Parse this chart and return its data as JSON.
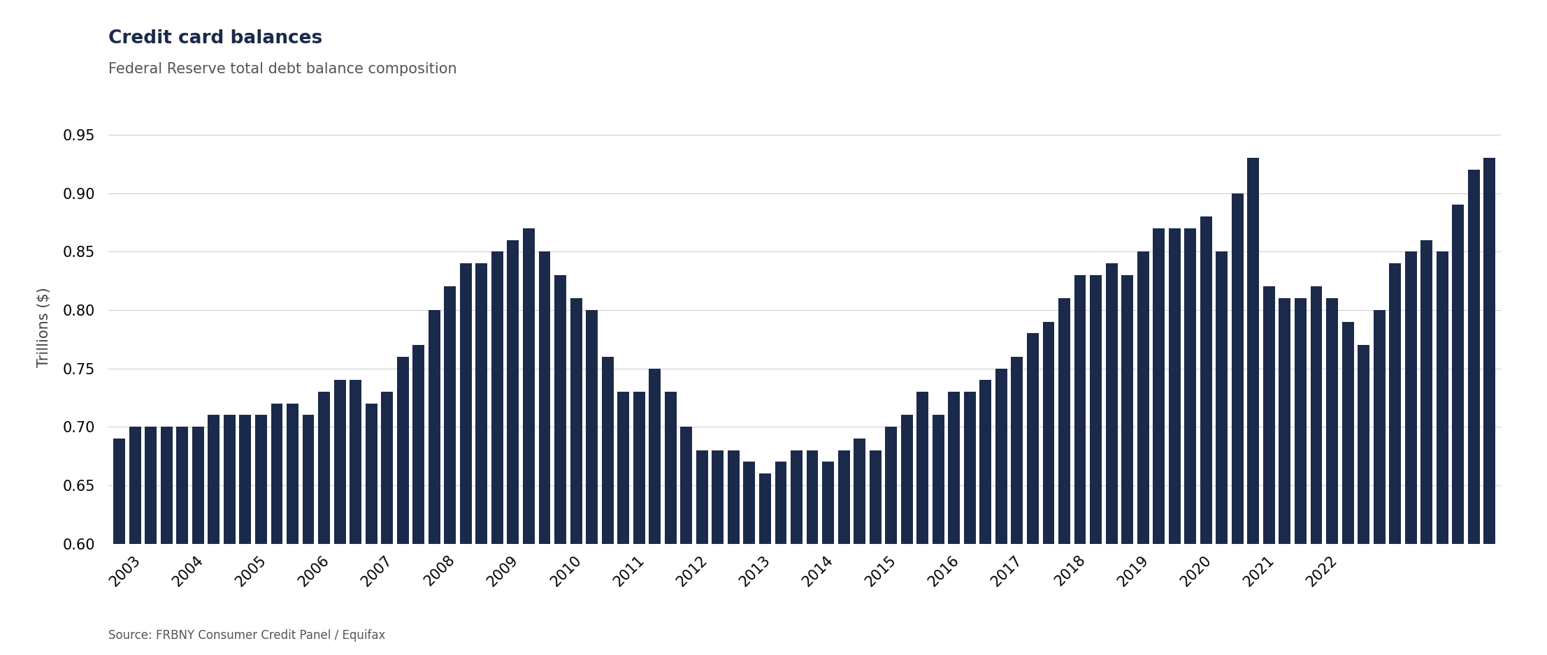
{
  "title": "Credit card balances",
  "subtitle": "Federal Reserve total debt balance composition",
  "ylabel": "Trillions ($)",
  "source": "Source: FRBNY Consumer Credit Panel / Equifax",
  "bar_color": "#1b2a4a",
  "background_color": "#ffffff",
  "ylim": [
    0.6,
    0.97
  ],
  "yticks": [
    0.6,
    0.65,
    0.7,
    0.75,
    0.8,
    0.85,
    0.9,
    0.95
  ],
  "values": [
    0.69,
    0.7,
    0.7,
    0.7,
    0.7,
    0.7,
    0.71,
    0.71,
    0.71,
    0.71,
    0.72,
    0.72,
    0.71,
    0.73,
    0.74,
    0.74,
    0.72,
    0.73,
    0.76,
    0.77,
    0.8,
    0.82,
    0.84,
    0.84,
    0.85,
    0.86,
    0.87,
    0.85,
    0.83,
    0.81,
    0.8,
    0.76,
    0.73,
    0.73,
    0.75,
    0.73,
    0.7,
    0.68,
    0.68,
    0.68,
    0.67,
    0.66,
    0.67,
    0.68,
    0.68,
    0.67,
    0.68,
    0.69,
    0.68,
    0.7,
    0.71,
    0.73,
    0.71,
    0.73,
    0.73,
    0.74,
    0.75,
    0.76,
    0.78,
    0.79,
    0.81,
    0.83,
    0.83,
    0.84,
    0.83,
    0.85,
    0.87,
    0.87,
    0.87,
    0.88,
    0.85,
    0.9,
    0.93,
    0.82,
    0.81,
    0.81,
    0.82,
    0.81,
    0.79,
    0.77,
    0.8,
    0.84,
    0.85,
    0.86,
    0.85,
    0.89,
    0.92,
    0.93
  ],
  "year_labels": [
    "2003",
    "2004",
    "2005",
    "2006",
    "2007",
    "2008",
    "2009",
    "2010",
    "2011",
    "2012",
    "2013",
    "2014",
    "2015",
    "2016",
    "2017",
    "2018",
    "2019",
    "2020",
    "2021",
    "2022"
  ],
  "year_tick_positions": [
    1.5,
    5.5,
    9.5,
    13.5,
    17.5,
    21.5,
    25.5,
    29.5,
    33.5,
    37.5,
    41.5,
    45.5,
    49.5,
    53.5,
    57.5,
    61.5,
    65.5,
    69.5,
    73.5,
    77.5
  ]
}
